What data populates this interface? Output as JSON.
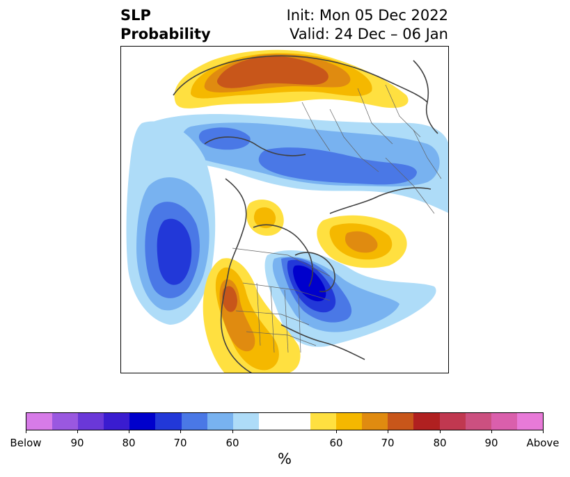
{
  "title": {
    "left_line1": "SLP",
    "left_line2": "Probability",
    "right_line1": "Init: Mon 05 Dec 2022",
    "right_line2": "Valid: 24 Dec – 06 Jan"
  },
  "map": {
    "projection": "polar-stereographic",
    "region": "North America / North Pacific / Arctic"
  },
  "colorbar": {
    "colors": [
      "#d77be8",
      "#9a58e0",
      "#6a38d8",
      "#3a1cd0",
      "#0000cc",
      "#2238d8",
      "#4a78e6",
      "#78b2f0",
      "#aedcf8",
      "#ffffff",
      "#ffe040",
      "#f5b800",
      "#e08b10",
      "#c8561a",
      "#b02020",
      "#c03850",
      "#cc5080",
      "#da5fac",
      "#e87ad8"
    ],
    "tick_labels": [
      "Below",
      "90",
      "80",
      "70",
      "60",
      "60",
      "70",
      "80",
      "90",
      "Above"
    ],
    "unit": "%"
  },
  "colors": {
    "below_60": "#aedcf8",
    "below_70": "#4a78e6",
    "below_80": "#0000cc",
    "above_60": "#ffe040",
    "above_70": "#e08b10",
    "above_80": "#c8561a"
  }
}
